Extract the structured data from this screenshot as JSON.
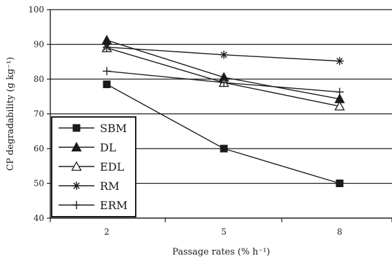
{
  "chart_data": {
    "type": "line",
    "xlabel": "Passage rates (% h⁻¹)",
    "ylabel": "CP degradability (g kg⁻¹)",
    "x": [
      2,
      5,
      8
    ],
    "x_tick_labels": [
      "2",
      "5",
      "8"
    ],
    "ylim": [
      40,
      100
    ],
    "y_ticks": [
      40,
      50,
      60,
      70,
      80,
      90,
      100
    ],
    "y_tick_labels": [
      "40",
      "50",
      "60",
      "70",
      "80",
      "90",
      "100"
    ],
    "grid": "horizontal",
    "legend_position": "bottom-left",
    "series": [
      {
        "name": "SBM",
        "marker": "filled-square",
        "values": [
          78.5,
          60,
          50
        ]
      },
      {
        "name": "DL",
        "marker": "filled-triangle",
        "values": [
          91.2,
          80.5,
          74.3
        ]
      },
      {
        "name": "EDL",
        "marker": "open-triangle",
        "values": [
          89,
          79,
          72.2
        ]
      },
      {
        "name": "RM",
        "marker": "star",
        "values": [
          89.2,
          87,
          85.2
        ]
      },
      {
        "name": "ERM",
        "marker": "plus",
        "values": [
          82.3,
          79,
          76.3
        ]
      }
    ],
    "line_color": "#1a1a1a"
  }
}
